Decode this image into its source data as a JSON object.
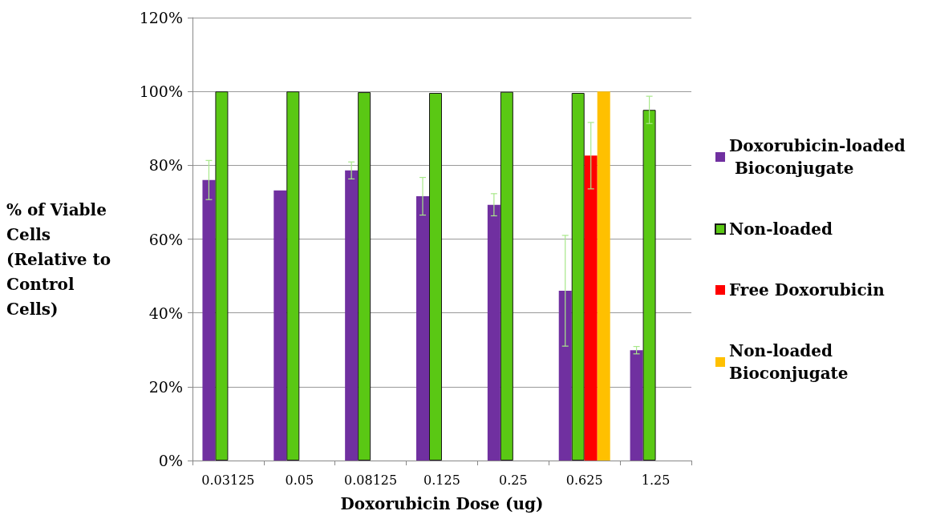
{
  "chart_data": {
    "type": "bar",
    "xlabel": "Doxorubicin Dose (ug)",
    "ylabel": "% of Viable Cells (Relative to Control Cells)",
    "categories": [
      "0.03125",
      "0.05",
      "0.08125",
      "0.125",
      "0.25",
      "0.625",
      "1.25"
    ],
    "series": [
      {
        "name": "Doxorubicin-loaded Bioconjugate",
        "color": "#7030a0",
        "values": [
          76,
          73.2,
          78.6,
          71.6,
          69.3,
          46,
          29.9
        ],
        "errors": [
          5.3,
          null,
          2.3,
          5.1,
          3,
          15,
          1
        ]
      },
      {
        "name": "Non-loaded",
        "color": "#5ac814",
        "values": [
          100,
          100,
          99.8,
          99.6,
          99.9,
          99.6,
          95
        ],
        "errors": [
          null,
          null,
          null,
          null,
          null,
          null,
          3.7
        ]
      },
      {
        "name": "Free Doxorubicin",
        "color": "#ff0000",
        "values": [
          null,
          null,
          null,
          null,
          null,
          82.6,
          null
        ],
        "errors": [
          null,
          null,
          null,
          null,
          null,
          9,
          null
        ]
      },
      {
        "name": "Non-loaded Bioconjugate",
        "color": "#ffc000",
        "values": [
          null,
          null,
          null,
          null,
          null,
          100,
          null
        ]
      }
    ],
    "ylim": [
      0,
      120
    ],
    "yticks": [
      {
        "value": 0,
        "label": "0%"
      },
      {
        "value": 20,
        "label": "20%"
      },
      {
        "value": 40,
        "label": "40%"
      },
      {
        "value": 60,
        "label": "60%"
      },
      {
        "value": 80,
        "label": "80%"
      },
      {
        "value": 100,
        "label": "100%"
      },
      {
        "value": 120,
        "label": "120%"
      }
    ],
    "grid": "y",
    "legend": "right"
  }
}
